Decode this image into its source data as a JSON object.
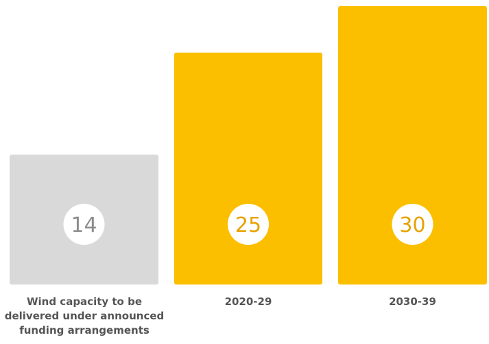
{
  "chart_data": {
    "type": "bar",
    "categories": [
      "Wind capacity to be delivered under announced funding arrangements",
      "2020-29",
      "2030-39"
    ],
    "values": [
      14,
      25,
      30
    ],
    "value_labels": [
      "14",
      "25",
      "30"
    ],
    "bar_colors": [
      "#d9d9d9",
      "#fbbf00",
      "#fbbf00"
    ],
    "value_label_colors": [
      "#8c8c8c",
      "#e8a200",
      "#e8a200"
    ],
    "ylim": [
      0,
      30
    ],
    "grid": false,
    "axes_visible": false,
    "title": "",
    "xlabel": "",
    "ylabel": ""
  }
}
